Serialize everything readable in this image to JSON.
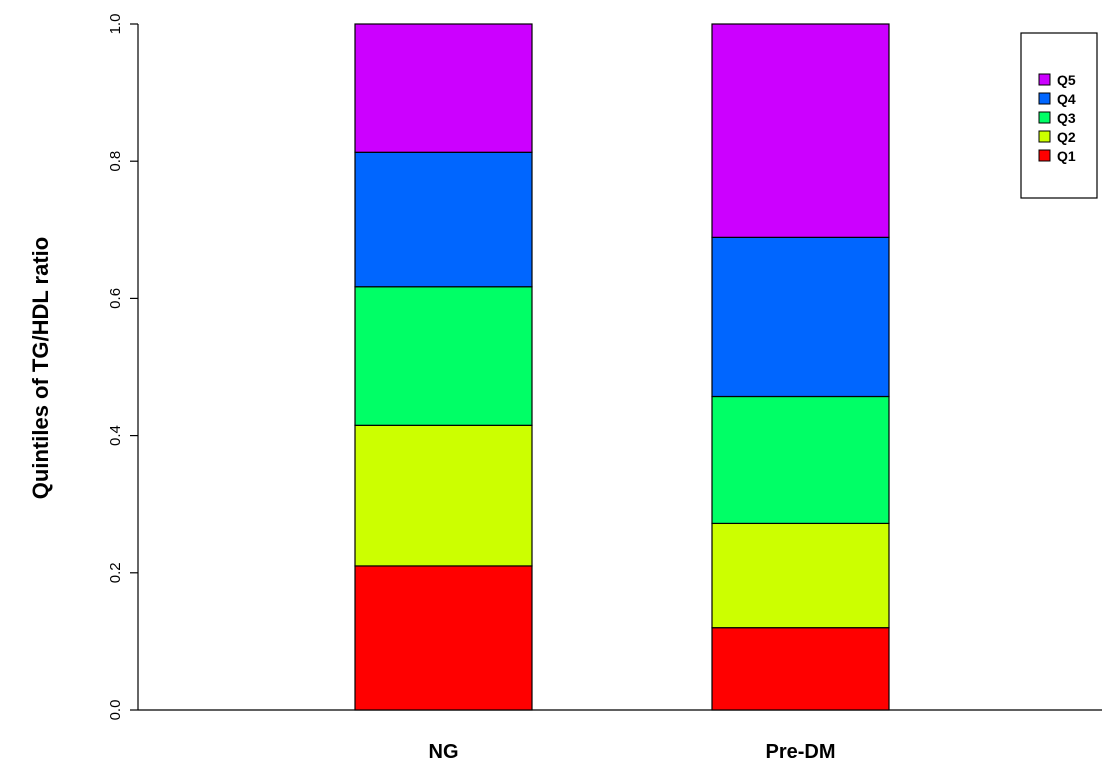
{
  "chart_data": {
    "type": "bar",
    "stacked": true,
    "title": "",
    "xlabel": "",
    "ylabel": "Quintiles of  TG/HDL ratio",
    "ylim": [
      0,
      1.0
    ],
    "yticks": [
      "0.0",
      "0.2",
      "0.4",
      "0.6",
      "0.8",
      "1.0"
    ],
    "ytick_values": [
      0,
      0.2,
      0.4,
      0.6,
      0.8,
      1.0
    ],
    "categories": [
      "NG",
      "Pre-DM"
    ],
    "series": [
      {
        "name": "Q1",
        "color": "#ff0000",
        "values": [
          0.21,
          0.12
        ]
      },
      {
        "name": "Q2",
        "color": "#ccff00",
        "values": [
          0.205,
          0.152
        ]
      },
      {
        "name": "Q3",
        "color": "#00ff66",
        "values": [
          0.202,
          0.185
        ]
      },
      {
        "name": "Q4",
        "color": "#0066ff",
        "values": [
          0.196,
          0.232
        ]
      },
      {
        "name": "Q5",
        "color": "#cc00ff",
        "values": [
          0.187,
          0.311
        ]
      }
    ],
    "legend": {
      "position": "top-right",
      "order": [
        "Q5",
        "Q4",
        "Q3",
        "Q2",
        "Q1"
      ]
    },
    "grid": false
  }
}
